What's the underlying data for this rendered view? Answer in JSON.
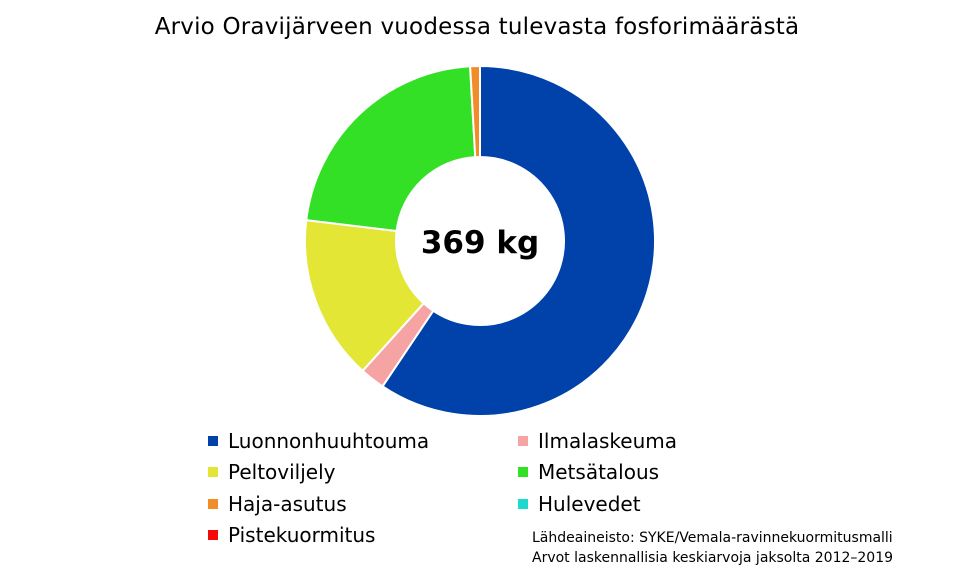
{
  "chart_data": {
    "type": "pie",
    "title": "Arvio Oravijärveen vuodessa tulevasta fosforimäärästä",
    "center_label": "369 kg",
    "categories": [
      "Luonnonhuuhtouma",
      "Ilmalaskeuma",
      "Peltoviljely",
      "Metsätalous",
      "Haja-asutus",
      "Hulevedet",
      "Pistekuormitus"
    ],
    "values": [
      59.4,
      2.3,
      15.2,
      22.2,
      0.9,
      0,
      0
    ],
    "colors": [
      "#0041AA",
      "#F5A3A3",
      "#E3E635",
      "#34E025",
      "#F28C28",
      "#1ED9CF",
      "#F50A0A"
    ],
    "legend": "bottom",
    "source_lines": [
      "Lähdeaineisto: SYKE/Vemala-ravinnekuormitusmalli",
      "Arvot laskennallisia keskiarvoja jaksolta 2012–2019"
    ]
  }
}
